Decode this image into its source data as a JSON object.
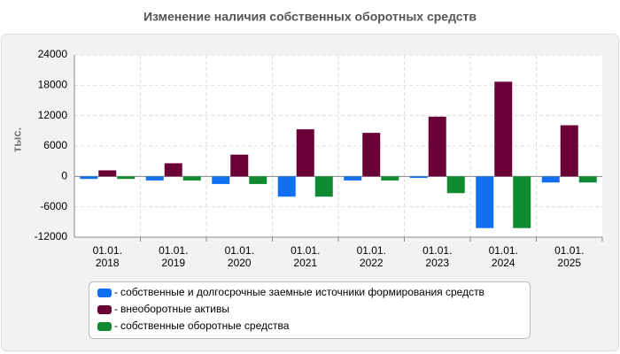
{
  "chart_data": {
    "type": "bar",
    "title": "Изменение наличия собственных оборотных средств",
    "y_label": "тыс.",
    "categories": [
      "01.01.\n2018",
      "01.01.\n2019",
      "01.01.\n2020",
      "01.01.\n2021",
      "01.01.\n2022",
      "01.01.\n2023",
      "01.01.\n2024",
      "01.01.\n2025"
    ],
    "series": [
      {
        "name": "собственные и долгосрочные заемные источники формирования средств",
        "color": "#1170f2",
        "values": [
          -500,
          -800,
          -1500,
          -4000,
          -800,
          -300,
          -10200,
          -1200
        ]
      },
      {
        "name": "внеоборотные активы",
        "color": "#6b0036",
        "values": [
          1200,
          2600,
          4300,
          9300,
          8600,
          11800,
          18700,
          10100
        ]
      },
      {
        "name": "собственные оборотные средства",
        "color": "#0f8a30",
        "values": [
          -500,
          -800,
          -1500,
          -4000,
          -800,
          -3300,
          -10200,
          -1200
        ]
      }
    ],
    "ylim": [
      -12000,
      24000
    ],
    "yticks": [
      -12000,
      -6000,
      0,
      6000,
      12000,
      18000,
      24000
    ],
    "grid": true
  }
}
